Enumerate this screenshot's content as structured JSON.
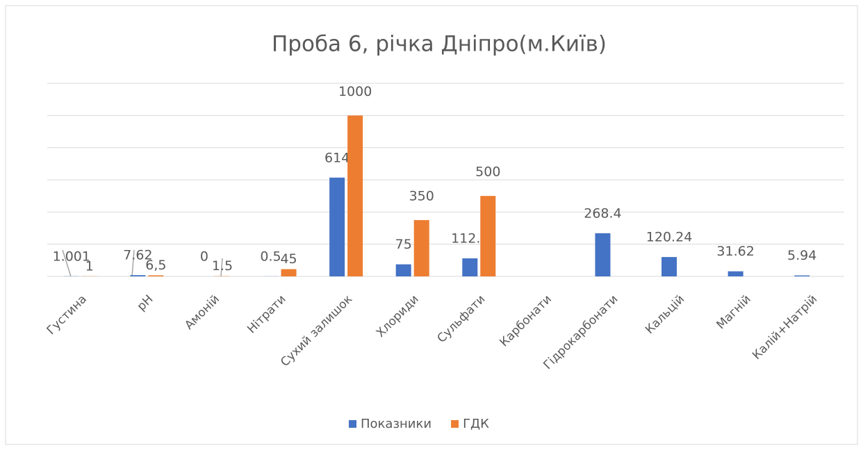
{
  "chart_data": {
    "type": "bar",
    "title": "Проба 6, річка Дніпро(м.Київ)",
    "categories": [
      "Густина",
      "pH",
      "Амоній",
      "Нітрати",
      "Сухий залишок",
      "Хлориди",
      "Сульфати",
      "Карбонати",
      "Гідрокарбонати",
      "Кальцій",
      "Магній",
      "Калій+Натрій"
    ],
    "series": [
      {
        "name": "Показники",
        "color": "#4472c4",
        "values": [
          1.001,
          7.62,
          0,
          0.5,
          614,
          75,
          112.1,
          null,
          268.4,
          120.24,
          31.62,
          5.94
        ]
      },
      {
        "name": "ГДК",
        "color": "#ed7d31",
        "values": [
          1,
          6.5,
          1.5,
          45,
          1000,
          350,
          500,
          null,
          null,
          null,
          null,
          null
        ],
        "value_labels": [
          "1",
          "6,5",
          "1.5",
          "45",
          "1000",
          "350",
          "500",
          null,
          null,
          null,
          null,
          null
        ]
      }
    ],
    "ylim": [
      0,
      1200
    ],
    "yticks": [
      0,
      200,
      400,
      600,
      800,
      1000,
      1200
    ],
    "grid": true,
    "legend": "bottom"
  }
}
